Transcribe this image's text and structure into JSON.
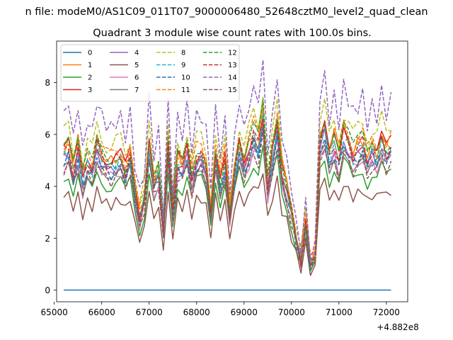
{
  "chart_data": {
    "type": "line",
    "suptitle": "n file: modeM0/AS1C09_011T07_9000006480_52648cztM0_level2_quad_clean",
    "title": "Quadrant 3 module wise count rates with 100.0s bins.",
    "xlabel": "",
    "ylabel": "",
    "x_offset_label": "+4.882e8",
    "xlim": [
      65050,
      72450
    ],
    "ylim": [
      -0.45,
      9.6
    ],
    "x_ticks": [
      65000,
      66000,
      67000,
      68000,
      69000,
      70000,
      71000,
      72000
    ],
    "x_tick_labels": [
      "65000",
      "66000",
      "67000",
      "68000",
      "69000",
      "70000",
      "71000",
      "72000"
    ],
    "y_ticks": [
      0,
      2,
      4,
      6,
      8
    ],
    "y_tick_labels": [
      "0",
      "2",
      "4",
      "6",
      "8"
    ],
    "legend_location": "upper-left",
    "x_start": 65200,
    "x_step": 100,
    "base_profile": [
      5.3,
      5.5,
      4.6,
      5.4,
      4.2,
      5.0,
      4.7,
      5.6,
      5.2,
      4.9,
      4.8,
      5.0,
      5.1,
      4.6,
      5.2,
      3.8,
      2.8,
      3.6,
      5.6,
      4.1,
      4.6,
      2.4,
      5.4,
      3.1,
      5.0,
      4.7,
      5.4,
      4.3,
      5.1,
      5.2,
      4.7,
      3.2,
      5.3,
      4.1,
      5.0,
      3.0,
      4.5,
      5.6,
      4.8,
      5.4,
      6.0,
      5.6,
      6.8,
      4.0,
      5.3,
      6.2,
      4.5,
      3.9,
      3.0,
      2.0,
      1.2,
      2.6,
      1.0,
      1.3,
      5.8,
      6.3,
      5.1,
      5.7,
      5.0,
      6.0,
      5.7,
      5.2,
      5.5,
      5.7,
      5.0,
      5.4,
      5.2,
      5.8,
      5.3,
      5.6
    ],
    "series": [
      {
        "name": "0",
        "color": "#1f77b4",
        "dash": "solid",
        "scale": 0,
        "offset": 0
      },
      {
        "name": "1",
        "color": "#ff7f0e",
        "dash": "solid",
        "scale": 1.0,
        "offset": 0.12
      },
      {
        "name": "2",
        "color": "#2ca02c",
        "dash": "solid",
        "scale": 0.82,
        "offset": 0
      },
      {
        "name": "3",
        "color": "#d62728",
        "dash": "solid",
        "scale": 1.02,
        "offset": 0
      },
      {
        "name": "4",
        "color": "#9467bd",
        "dash": "solid",
        "scale": 0.95,
        "offset": 0
      },
      {
        "name": "5",
        "color": "#8c564b",
        "dash": "solid",
        "scale": 0.68,
        "offset": 0
      },
      {
        "name": "6",
        "color": "#e377c2",
        "dash": "solid",
        "scale": 0.9,
        "offset": 0
      },
      {
        "name": "7",
        "color": "#7f7f7f",
        "dash": "solid",
        "scale": 0.92,
        "offset": 0
      },
      {
        "name": "8",
        "color": "#bcbd22",
        "dash": "dashed",
        "scale": 1.14,
        "offset": 0
      },
      {
        "name": "9",
        "color": "#17becf",
        "dash": "dashed",
        "scale": 0.98,
        "offset": 0
      },
      {
        "name": "10",
        "color": "#1f77b4",
        "dash": "dashed",
        "scale": 0.93,
        "offset": 0
      },
      {
        "name": "11",
        "color": "#ff7f0e",
        "dash": "dashed",
        "scale": 1.07,
        "offset": 0
      },
      {
        "name": "12",
        "color": "#2ca02c",
        "dash": "dashed",
        "scale": 1.04,
        "offset": 0
      },
      {
        "name": "13",
        "color": "#d62728",
        "dash": "dashed",
        "scale": 1.0,
        "offset": 0
      },
      {
        "name": "14",
        "color": "#9467bd",
        "dash": "dashed",
        "scale": 1.3,
        "offset": 0
      },
      {
        "name": "15",
        "color": "#8c564b",
        "dash": "dashed",
        "scale": 0.88,
        "offset": 0
      }
    ]
  }
}
